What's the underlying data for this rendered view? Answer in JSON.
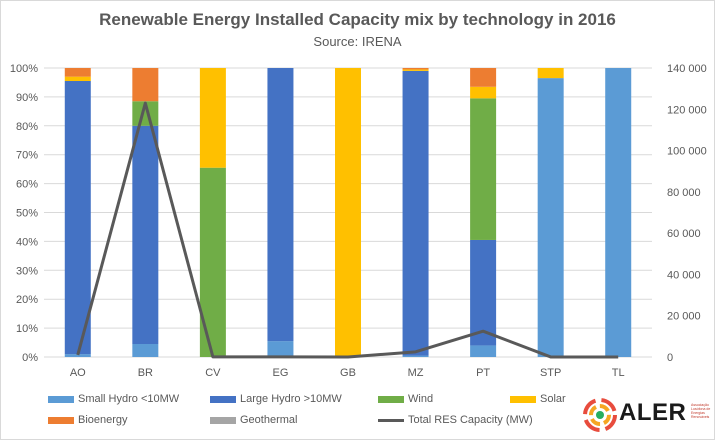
{
  "title": "Renewable Energy Installed Capacity mix by technology in 2016",
  "subtitle": "Source: IRENA",
  "logo": {
    "name": "ALER",
    "tagline": "Associação Lusófona de Energias Renováveis"
  },
  "chart_data": {
    "type": "bar",
    "stacked": true,
    "categories": [
      "AO",
      "BR",
      "CV",
      "EG",
      "GB",
      "MZ",
      "PT",
      "STP",
      "TL"
    ],
    "y_left": {
      "ticks": [
        "0%",
        "10%",
        "20%",
        "30%",
        "40%",
        "50%",
        "60%",
        "70%",
        "80%",
        "90%",
        "100%"
      ],
      "ylim": [
        0,
        100
      ]
    },
    "y_right": {
      "ticks": [
        "0",
        "20 000",
        "40 000",
        "60 000",
        "80 000",
        "100 000",
        "120 000",
        "140 000"
      ],
      "ylim": [
        0,
        140000
      ]
    },
    "grid": true,
    "legend_position": "bottom",
    "series": [
      {
        "name": "Small Hydro <10MW",
        "color": "#5b9bd5",
        "values": [
          1,
          4.5,
          0,
          5.5,
          0,
          0.5,
          4,
          96.5,
          100
        ]
      },
      {
        "name": "Large Hydro >10MW",
        "color": "#4472c4",
        "values": [
          94.5,
          75.5,
          0,
          94.5,
          0,
          98.5,
          36.5,
          0,
          0
        ]
      },
      {
        "name": "Wind",
        "color": "#70ad47",
        "values": [
          0,
          8.5,
          65.5,
          0,
          0,
          0,
          49,
          0,
          0
        ]
      },
      {
        "name": "Solar",
        "color": "#ffc000",
        "values": [
          1.5,
          0,
          34.5,
          0,
          100,
          0.5,
          4,
          3.5,
          0
        ]
      },
      {
        "name": "Bioenergy",
        "color": "#ed7d31",
        "values": [
          3,
          11.5,
          0,
          0,
          0,
          0.5,
          6.5,
          0,
          0
        ]
      },
      {
        "name": "Geothermal",
        "color": "#a5a5a5",
        "values": [
          0,
          0,
          0,
          0,
          0,
          0,
          0,
          0,
          0
        ]
      }
    ],
    "line_series": {
      "name": "Total RES Capacity (MW)",
      "color": "#595959",
      "axis": "right",
      "values": [
        1000,
        123000,
        50,
        60,
        10,
        2500,
        12500,
        30,
        10
      ]
    }
  }
}
